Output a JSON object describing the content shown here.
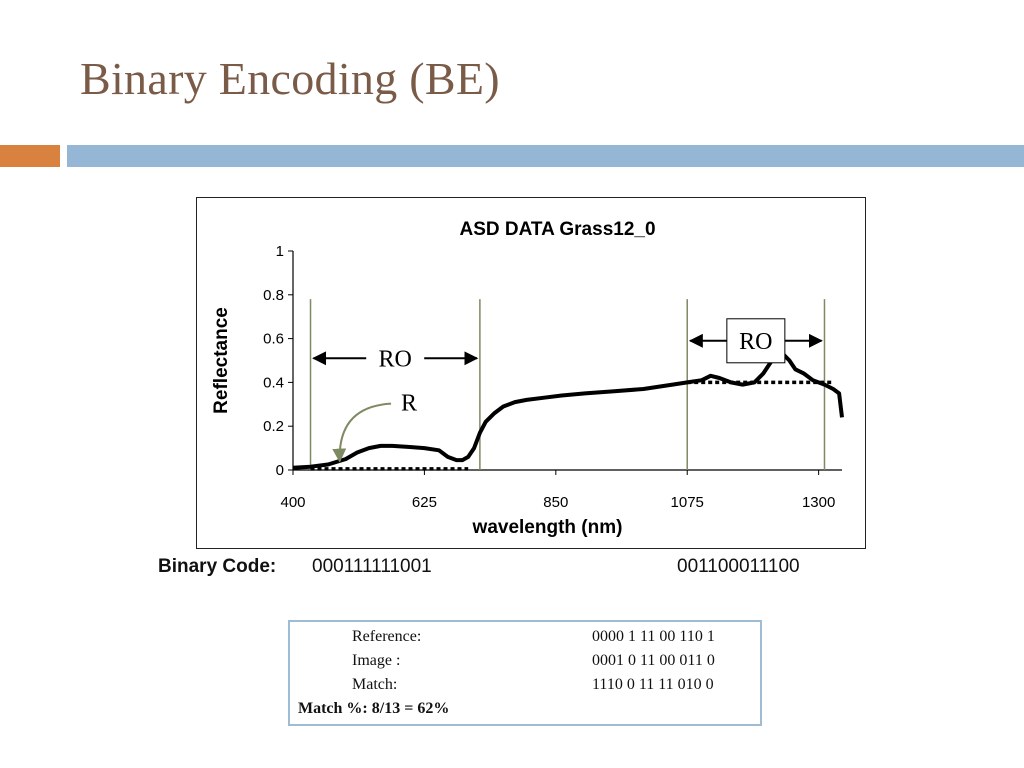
{
  "slide": {
    "title": "Binary Encoding (BE)"
  },
  "chart_data": {
    "type": "line",
    "title": "ASD DATA Grass12_0",
    "xlabel": "wavelength (nm)",
    "ylabel": "Reflectance",
    "xlim": [
      400,
      1340
    ],
    "ylim": [
      0,
      1
    ],
    "x_ticks": [
      400,
      625,
      850,
      1075,
      1300
    ],
    "y_ticks": [
      0,
      0.2,
      0.4,
      0.6,
      0.8,
      1
    ],
    "y_tick_labels": [
      "0",
      "0.2",
      "0.4",
      "0.6",
      "0.8",
      "1"
    ],
    "grid": false,
    "series": [
      {
        "style": "solid",
        "x": [
          400,
          430,
          460,
          490,
          510,
          530,
          550,
          570,
          600,
          625,
          650,
          665,
          680,
          690,
          700,
          710,
          720,
          730,
          745,
          760,
          780,
          800,
          830,
          860,
          900,
          950,
          1000,
          1050,
          1075,
          1100,
          1115,
          1130,
          1150,
          1170,
          1190,
          1205,
          1220,
          1235,
          1250,
          1260,
          1275,
          1290,
          1310,
          1325,
          1335,
          1340
        ],
        "y": [
          0.01,
          0.015,
          0.025,
          0.05,
          0.08,
          0.1,
          0.11,
          0.11,
          0.105,
          0.1,
          0.09,
          0.06,
          0.045,
          0.045,
          0.06,
          0.1,
          0.17,
          0.22,
          0.26,
          0.29,
          0.31,
          0.32,
          0.33,
          0.34,
          0.35,
          0.36,
          0.37,
          0.39,
          0.4,
          0.41,
          0.43,
          0.42,
          0.4,
          0.39,
          0.4,
          0.44,
          0.5,
          0.54,
          0.5,
          0.46,
          0.44,
          0.41,
          0.39,
          0.37,
          0.35,
          0.24
        ]
      },
      {
        "style": "dotted",
        "x": [
          430,
          700
        ],
        "y": [
          0.005,
          0.005
        ]
      },
      {
        "style": "dotted",
        "x": [
          1075,
          1325
        ],
        "y": [
          0.4,
          0.4
        ]
      }
    ],
    "vlines": [
      430,
      720,
      1075,
      1310
    ],
    "annotations": [
      {
        "text": "RO",
        "x_from": 430,
        "x_to": 720,
        "y": 0.51
      },
      {
        "text": "RO",
        "x_from": 1075,
        "x_to": 1310,
        "y": 0.59,
        "boxed": true
      },
      {
        "text": "R",
        "x": 585,
        "y": 0.28,
        "arrow_to_x": 480,
        "arrow_to_y": 0.04
      }
    ]
  },
  "binary_code": {
    "label": "Binary Code:",
    "left": "000111111001",
    "right": "001100011100"
  },
  "match_table": {
    "rows": [
      {
        "label": "Reference:",
        "code": "0000 1 11 00 110 1"
      },
      {
        "label": "Image :",
        "code": "0001 0 11 00 011 0"
      },
      {
        "label": "Match:",
        "code": "1110 0 11 11 010 0"
      }
    ],
    "summary": "Match %:   8/13 = 62%"
  },
  "colors": {
    "title": "#7a5b48",
    "accent_orange": "#d9813e",
    "accent_blue": "#95b6d5",
    "table_border": "#9fbcd3",
    "guide_line": "#7d8a62"
  }
}
